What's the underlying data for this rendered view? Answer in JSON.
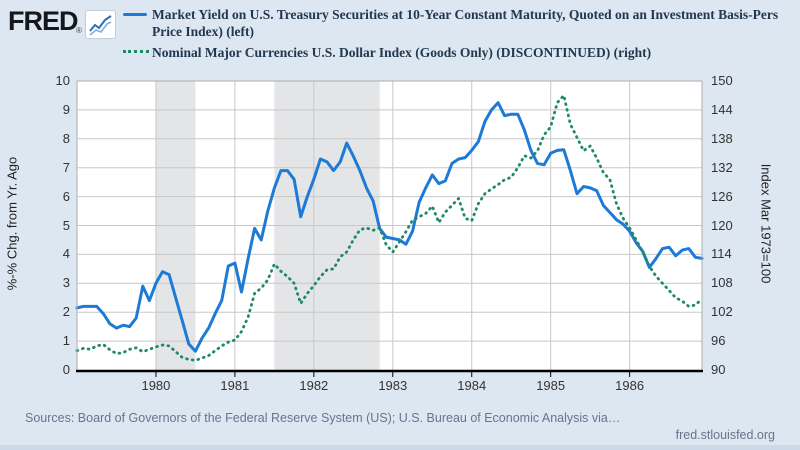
{
  "header": {
    "logo_text": "FRED",
    "logo_registered": "®",
    "logo_icon": "sparkline-chart-icon"
  },
  "legend": {
    "items": [
      {
        "swatch": "solid-line",
        "color": "#1d7ad6",
        "line1": "Market Yield on U.S. Treasury Securities at 10-Year Constant Maturity, Quoted on an Investment Basis-Pers",
        "line2": "Price Index) (left)"
      },
      {
        "swatch": "dotted-line",
        "color": "#1d8a68",
        "line1": "Nominal Major Currencies U.S. Dollar Index (Goods Only) (DISCONTINUED) (right)"
      }
    ]
  },
  "chart_data": {
    "type": "line",
    "title": "",
    "x_start_year": 1979,
    "months": 96,
    "x_tick_labels": [
      "1980",
      "1981",
      "1982",
      "1983",
      "1984",
      "1985",
      "1986"
    ],
    "left_axis": {
      "label": "%-% Chg. from Yr. Ago",
      "min": 0,
      "max": 10,
      "tick_step": 1,
      "tick_labels": [
        "0",
        "1",
        "2",
        "3",
        "4",
        "5",
        "6",
        "7",
        "8",
        "9",
        "10"
      ]
    },
    "right_axis": {
      "label": "Index Mar 1973=100",
      "min": 90,
      "max": 150,
      "tick_step": 6,
      "tick_labels": [
        "90",
        "96",
        "102",
        "108",
        "114",
        "120",
        "126",
        "132",
        "138",
        "144",
        "150"
      ]
    },
    "grid": true,
    "legend_position": "top",
    "recession_bands_years": [
      [
        1980.0,
        1980.5
      ],
      [
        1981.5,
        1982.8333
      ]
    ],
    "band_color": "#e4e5e7",
    "grid_color": "#c8c8c8",
    "series": [
      {
        "name": "Market Yield on U.S. Treasury Securities at 10-Year Constant Maturity minus PCE Price Index (left)",
        "axis": "left",
        "style": "solid",
        "color": "#1d7ad6",
        "values": [
          2.15,
          2.2,
          2.2,
          2.2,
          1.95,
          1.6,
          1.45,
          1.55,
          1.5,
          1.8,
          2.9,
          2.4,
          3.0,
          3.4,
          3.3,
          2.5,
          1.7,
          0.9,
          0.65,
          1.1,
          1.45,
          1.95,
          2.4,
          3.6,
          3.7,
          2.7,
          3.85,
          4.9,
          4.5,
          5.5,
          6.3,
          6.9,
          6.9,
          6.6,
          5.3,
          6.0,
          6.6,
          7.3,
          7.2,
          6.9,
          7.2,
          7.85,
          7.4,
          6.9,
          6.3,
          5.85,
          4.9,
          4.6,
          4.55,
          4.5,
          4.35,
          4.8,
          5.8,
          6.3,
          6.75,
          6.45,
          6.55,
          7.15,
          7.3,
          7.35,
          7.6,
          7.9,
          8.6,
          9.0,
          9.25,
          8.8,
          8.85,
          8.85,
          8.3,
          7.6,
          7.15,
          7.1,
          7.5,
          7.6,
          7.62,
          6.9,
          6.1,
          6.35,
          6.3,
          6.2,
          5.7,
          5.45,
          5.2,
          5.05,
          4.8,
          4.4,
          4.1,
          3.55,
          3.85,
          4.2,
          4.25,
          3.95,
          4.15,
          4.2,
          3.9,
          3.86
        ]
      },
      {
        "name": "Nominal Major Currencies U.S. Dollar Index (Goods Only) (DISCONTINUED) (right)",
        "axis": "right",
        "style": "dotted",
        "color": "#1d8a68",
        "values": [
          94.0,
          94.5,
          94.3,
          95.0,
          95.3,
          94.2,
          93.4,
          93.6,
          94.3,
          94.6,
          93.8,
          94.3,
          94.8,
          95.2,
          95.0,
          93.8,
          92.6,
          92.2,
          92.0,
          92.5,
          93.0,
          94.0,
          95.0,
          95.8,
          96.2,
          98.0,
          101.0,
          105.9,
          107.0,
          108.7,
          112.0,
          110.5,
          109.4,
          108.0,
          103.8,
          105.9,
          107.5,
          109.4,
          110.8,
          111.0,
          113.5,
          114.5,
          117.0,
          119.1,
          119.5,
          119.0,
          119.5,
          116.0,
          114.5,
          116.6,
          118.7,
          121.1,
          121.8,
          122.5,
          124.0,
          120.6,
          122.8,
          124.2,
          125.6,
          121.5,
          121.0,
          124.5,
          126.6,
          127.6,
          128.5,
          129.5,
          130.0,
          132.0,
          134.5,
          134.0,
          135.5,
          138.8,
          140.5,
          145.5,
          147.0,
          141.0,
          138.3,
          135.5,
          136.5,
          134.0,
          131.0,
          129.5,
          124.5,
          121.5,
          119.5,
          117.0,
          114.5,
          111.5,
          109.5,
          108.0,
          106.5,
          105.0,
          104.3,
          103.2,
          103.5,
          104.8
        ]
      }
    ]
  },
  "footer": {
    "sources": "Sources: Board of Governors of the Federal Reserve System (US); U.S. Bureau of Economic Analysis via…",
    "site": "fred.stlouisfed.org"
  }
}
